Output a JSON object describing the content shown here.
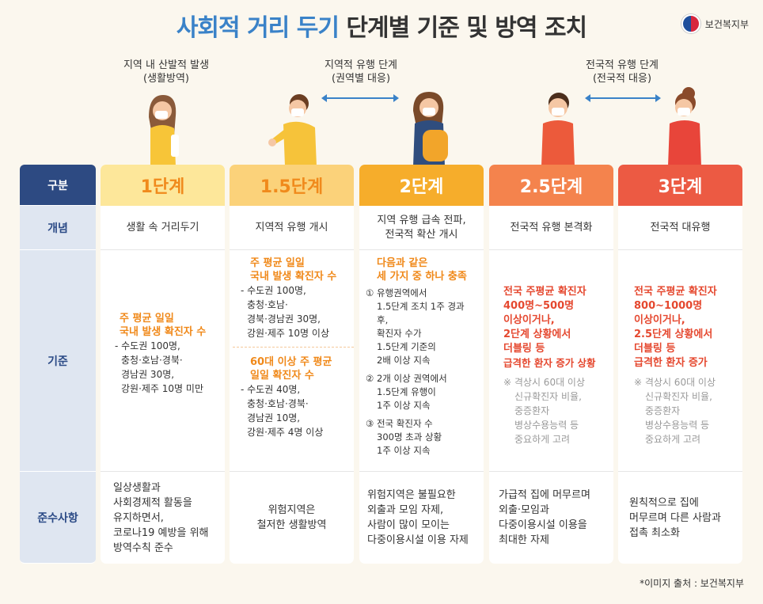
{
  "title": {
    "part1": "사회적 거리 두기",
    "part2": "단계별 기준 및 방역 조치"
  },
  "logo": {
    "text": "보건복지부",
    "icon": "taegeuk-icon"
  },
  "stage_labels": [
    {
      "line1": "지역 내 산발적 발생",
      "line2": "(생활방역)"
    },
    {
      "line1": "지역적 유행 단계",
      "line2": "(권역별 대응)"
    },
    {
      "line1": "전국적 유행 단계",
      "line2": "(전국적 대응)"
    }
  ],
  "row_heads": {
    "category": "구분",
    "concept": "개념",
    "criteria": "기준",
    "compliance": "준수사항"
  },
  "levels": [
    {
      "name": "1단계",
      "concept": "생활 속 거리두기",
      "criteria": {
        "headline": [
          "주 평균 일일",
          "국내 발생 확진자 수"
        ],
        "items": [
          "- 수도권 100명,",
          "충청·호남·경북·",
          "경남권 30명,",
          "강원·제주 10명 미만"
        ]
      },
      "compliance": [
        "일상생활과",
        "사회경제적 활동을",
        "유지하면서,",
        "코로나19 예방을 위해",
        "방역수칙 준수"
      ]
    },
    {
      "name": "1.5단계",
      "concept": "지역적 유행 개시",
      "criteria": {
        "headline": [
          "주 평균 일일",
          "국내 발생 확진자 수"
        ],
        "items": [
          "- 수도권 100명,",
          "충청·호남·",
          "경북·경남권 30명,",
          "강원·제주 10명 이상"
        ],
        "headline2": [
          "60대 이상 주 평균",
          "일일 확진자 수"
        ],
        "items2": [
          "- 수도권 40명,",
          "충청·호남·경북·",
          "경남권 10명,",
          "강원·제주 4명 이상"
        ]
      },
      "compliance": [
        "위험지역은",
        "철저한 생활방역"
      ]
    },
    {
      "name": "2단계",
      "concept": [
        "지역 유행 급속 전파,",
        "전국적 확산 개시"
      ],
      "criteria": {
        "headline": [
          "다음과 같은",
          "세 가지 중 하나 충족"
        ],
        "items": [
          "① 유행권역에서",
          "1.5단계 조치 1주 경과 후,",
          "확진자 수가",
          "1.5단계 기준의",
          "2배 이상 지속",
          "② 2개 이상 권역에서",
          "1.5단계 유행이",
          "1주 이상 지속",
          "③ 전국 확진자 수",
          "300명 초과 상황",
          "1주 이상 지속"
        ]
      },
      "compliance": [
        "위험지역은 불필요한",
        "외출과 모임 자제,",
        "사람이 많이 모이는",
        "다중이용시설 이용 자제"
      ]
    },
    {
      "name": "2.5단계",
      "concept": "전국적 유행 본격화",
      "criteria": {
        "headline": [
          "전국 주평균 확진자",
          "400명~500명",
          "이상이거나,",
          "2단계 상황에서",
          "더블링 등",
          "급격한 환자 증가 상황"
        ],
        "note": [
          "※ 격상시 60대 이상",
          "신규확진자 비율,",
          "중증환자",
          "병상수용능력 등",
          "중요하게 고려"
        ]
      },
      "compliance": [
        "가급적 집에 머무르며",
        "외출·모임과",
        "다중이용시설 이용을",
        "최대한 자제"
      ]
    },
    {
      "name": "3단계",
      "concept": "전국적 대유행",
      "criteria": {
        "headline": [
          "전국 주평균 확진자",
          "800~1000명",
          "이상이거나,",
          "2.5단계 상황에서",
          "더블링 등",
          "급격한 환자 증가"
        ],
        "note": [
          "※ 격상시 60대 이상",
          "신규확진자 비율,",
          "중증환자",
          "병상수용능력 등",
          "중요하게 고려"
        ]
      },
      "compliance": [
        "원칙적으로 집에",
        "머무르며 다른 사람과",
        "접촉 최소화"
      ]
    }
  ],
  "colors": {
    "l1": "#fde79a",
    "l1_text": "#f08a1c",
    "l2": "#fbd27a",
    "l2_text": "#f08a1c",
    "l3": "#f6ad2b",
    "l3_text": "#ffffff",
    "l4": "#f4834d",
    "l4_text": "#ffffff",
    "l5": "#ec5a43",
    "l5_text": "#ffffff"
  },
  "footer": "*이미지 출처 : 보건복지부"
}
